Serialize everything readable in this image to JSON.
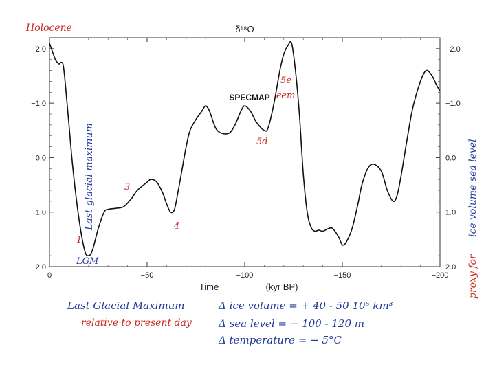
{
  "chart_data": {
    "type": "line",
    "title": "δ¹⁸O",
    "xlabel": "Time",
    "xlabel_unit": "(kyr BP)",
    "x_ticks": [
      "0",
      "−50",
      "−100",
      "−150",
      "−200"
    ],
    "y_ticks": [
      "−2.0",
      "−1.0",
      "0.0",
      "1.0",
      "2.0"
    ],
    "xlim": [
      0,
      -200
    ],
    "ylim": [
      -2.2,
      2.0
    ],
    "y_inverted": true,
    "grid": false,
    "series": [
      {
        "name": "SPECMAP",
        "x": [
          0,
          1,
          3,
          4,
          5,
          6,
          7,
          8,
          10,
          12,
          15,
          18,
          20,
          22,
          25,
          28,
          30,
          34,
          38,
          42,
          45,
          50,
          52,
          55,
          58,
          60,
          62,
          64,
          66,
          68,
          70,
          72,
          75,
          78,
          80,
          82,
          85,
          88,
          92,
          95,
          98,
          100,
          103,
          106,
          110,
          112,
          115,
          118,
          120,
          122,
          124,
          126,
          128,
          130,
          132,
          134,
          136,
          138,
          140,
          143,
          145,
          148,
          150,
          152,
          155,
          158,
          160,
          163,
          166,
          170,
          173,
          176,
          178,
          180,
          183,
          186,
          190,
          193,
          196,
          198,
          200
        ],
        "y": [
          -2.1,
          -2.0,
          -1.8,
          -1.75,
          -1.72,
          -1.75,
          -1.7,
          -1.4,
          -0.6,
          0.2,
          1.1,
          1.7,
          1.8,
          1.7,
          1.3,
          1.0,
          0.95,
          0.93,
          0.9,
          0.75,
          0.6,
          0.45,
          0.4,
          0.45,
          0.65,
          0.85,
          1.0,
          0.95,
          0.6,
          0.2,
          -0.2,
          -0.5,
          -0.7,
          -0.85,
          -0.95,
          -0.85,
          -0.55,
          -0.45,
          -0.45,
          -0.6,
          -0.85,
          -0.95,
          -0.85,
          -0.65,
          -0.5,
          -0.55,
          -1.0,
          -1.6,
          -1.9,
          -2.05,
          -2.1,
          -1.6,
          -0.8,
          0.3,
          1.0,
          1.28,
          1.35,
          1.33,
          1.35,
          1.3,
          1.3,
          1.45,
          1.6,
          1.55,
          1.3,
          0.85,
          0.5,
          0.2,
          0.12,
          0.25,
          0.6,
          0.8,
          0.7,
          0.35,
          -0.3,
          -0.9,
          -1.4,
          -1.6,
          -1.5,
          -1.35,
          -1.22
        ]
      }
    ],
    "annotations": {
      "series_label": "SPECMAP",
      "point_labels": [
        "5e",
        "ϵem",
        "5d",
        "3",
        "4",
        "1",
        "LGM"
      ]
    }
  },
  "handwritten": {
    "holocene": "Holocene",
    "last_glacial_maximum_axis": "Last glacial maximum",
    "right_axis_blue": "ice volume   sea level",
    "right_axis_red": "proxy for",
    "lgm_title": "Last Glacial Maximum",
    "relative": "relative to present day",
    "ice_volume": "Δ ice volume  =  + 40 - 50  10⁶ km³",
    "sea_level": "Δ sea level  =  − 100 - 120  m",
    "temperature": "Δ temperature  =  − 5°C"
  },
  "colors": {
    "blue_ink": "#1e3a9a",
    "red_ink": "#c8261e",
    "line": "#111111"
  }
}
